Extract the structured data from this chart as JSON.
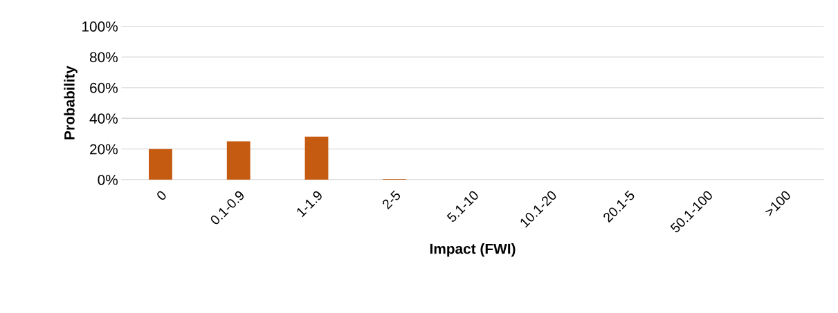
{
  "chart_data": {
    "type": "bar",
    "xlabel": "Impact (FWI)",
    "ylabel": "Probability",
    "categories": [
      "0",
      "0.1-0.9",
      "1-1.9",
      "2-5",
      "5.1-10",
      "10.1-20",
      "20.1-5",
      "50.1-100",
      ">100"
    ],
    "values": [
      20,
      25,
      28,
      0.5,
      0,
      0,
      0,
      0,
      0
    ],
    "color": "#c55a11",
    "ylim": [
      0,
      100
    ],
    "yticks": [
      {
        "value": 0,
        "label": "0%"
      },
      {
        "value": 20,
        "label": "20%"
      },
      {
        "value": 40,
        "label": "40%"
      },
      {
        "value": 60,
        "label": "60%"
      },
      {
        "value": 80,
        "label": "80%"
      },
      {
        "value": 100,
        "label": "100%"
      }
    ],
    "grid": "y"
  }
}
